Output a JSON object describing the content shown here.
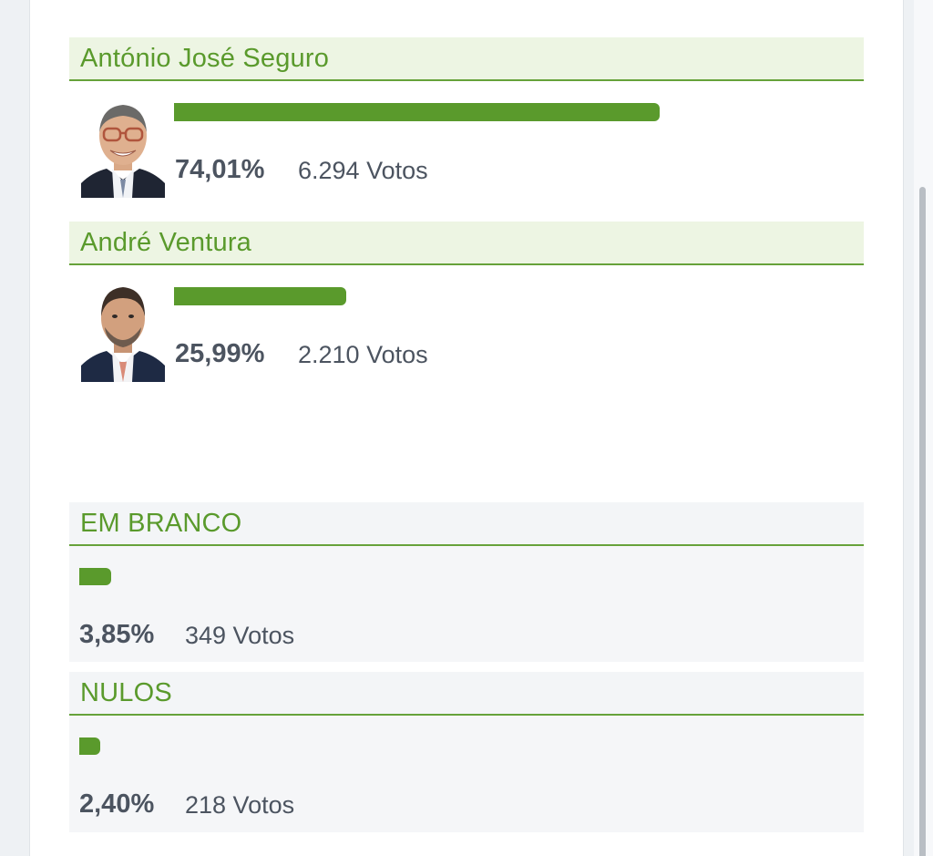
{
  "candidates": [
    {
      "name": "António José Seguro",
      "percent": "74,01%",
      "votes": "6.294 Votos",
      "share": 0.7401
    },
    {
      "name": "André Ventura",
      "percent": "25,99%",
      "votes": "2.210 Votos",
      "share": 0.2599
    }
  ],
  "blank": {
    "label": "EM BRANCO",
    "percent": "3,85%",
    "votes": "349 Votos",
    "share": 0.0385
  },
  "null": {
    "label": "NULOS",
    "percent": "2,40%",
    "votes": "218 Votos",
    "share": 0.024
  },
  "colors": {
    "accent": "#5a9a2c",
    "header_bg": "#edf5e3",
    "text": "#4c5460"
  }
}
